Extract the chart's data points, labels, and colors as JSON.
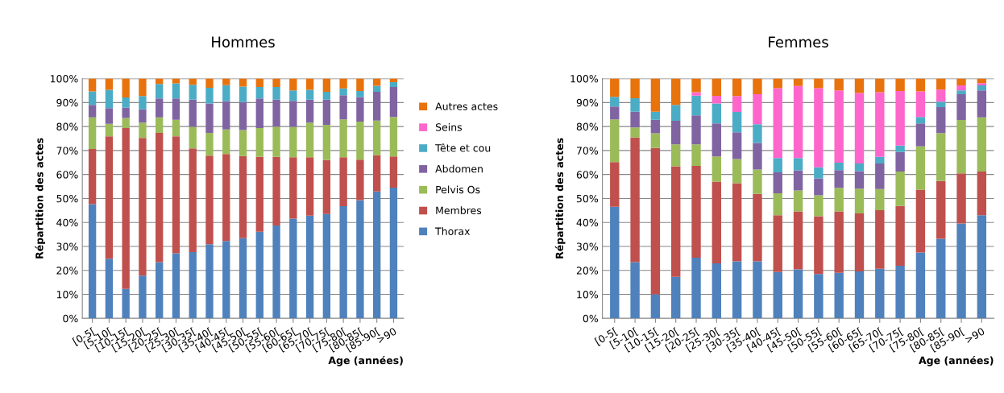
{
  "chart_data": [
    {
      "type": "bar",
      "stacked": true,
      "title": "Hommes",
      "ylabel": "Répartition des actes",
      "xlabel": "Age (années)",
      "legend": "right",
      "grid": "y",
      "categories": [
        "[0-5[",
        "[5-10[",
        "[10-15[",
        "[15-20[",
        "[20-25[",
        "[25-30[",
        "[30-35[",
        "[35-40[",
        "[40-45[",
        "[45-50[",
        "[50-55[",
        "[55-60[",
        "[60-65[",
        "[65-70[",
        "[70-75[",
        "[75-80[",
        "[80-85[",
        "[85-90[",
        ">90"
      ],
      "ylim": [
        0,
        100
      ],
      "yticks": [
        {
          "value": 0,
          "label": "0%"
        },
        {
          "value": 10,
          "label": "10%"
        },
        {
          "value": 20,
          "label": "20%"
        },
        {
          "value": 30,
          "label": "30%"
        },
        {
          "value": 40,
          "label": "40%"
        },
        {
          "value": 50,
          "label": "50%"
        },
        {
          "value": 60,
          "label": "60%"
        },
        {
          "value": 70,
          "label": "70%"
        },
        {
          "value": 80,
          "label": "80%"
        },
        {
          "value": 90,
          "label": "90%"
        },
        {
          "value": 100,
          "label": "100%"
        }
      ],
      "series": [
        {
          "name": "Thorax",
          "color": "#4f81bd",
          "values": [
            47.6,
            24.9,
            12.3,
            17.8,
            23.4,
            27.1,
            27.6,
            30.9,
            32.3,
            33.4,
            36.1,
            38.7,
            41.6,
            42.8,
            43.5,
            46.8,
            49.3,
            52.9,
            54.5
          ]
        },
        {
          "name": "Membres",
          "color": "#c0504d",
          "values": [
            23.0,
            51.0,
            67.1,
            57.5,
            54.0,
            48.8,
            43.3,
            37.0,
            36.2,
            34.3,
            31.3,
            28.7,
            25.6,
            24.4,
            22.5,
            20.4,
            16.9,
            15.1,
            13.0
          ]
        },
        {
          "name": "Pelvis Os",
          "color": "#9bbb59",
          "values": [
            13.2,
            5.2,
            4.2,
            6.3,
            6.4,
            6.9,
            9.0,
            9.5,
            10.3,
            10.8,
            12.0,
            12.6,
            12.7,
            14.4,
            14.7,
            15.8,
            15.9,
            14.5,
            16.5
          ]
        },
        {
          "name": "Abdomen",
          "color": "#8064a2",
          "values": [
            5.2,
            6.6,
            4.3,
            5.6,
            7.9,
            8.9,
            11.3,
            12.2,
            11.8,
            11.7,
            12.3,
            11.2,
            10.8,
            9.6,
            10.5,
            10.1,
            10.2,
            12.0,
            12.5
          ]
        },
        {
          "name": "Tête et cou",
          "color": "#4bacc6",
          "values": [
            5.7,
            7.6,
            4.2,
            5.5,
            6.1,
            6.3,
            6.2,
            6.6,
            6.7,
            6.5,
            4.8,
            5.3,
            4.4,
            4.1,
            3.3,
            2.8,
            2.5,
            2.5,
            2.0
          ]
        },
        {
          "name": "Seins",
          "color": "#ff66cc",
          "values": [
            null,
            null,
            null,
            null,
            null,
            null,
            null,
            null,
            null,
            null,
            null,
            null,
            null,
            null,
            null,
            null,
            null,
            null,
            null
          ]
        },
        {
          "name": "Autres actes",
          "color": "#e8720c",
          "values": [
            5.3,
            4.7,
            7.9,
            7.3,
            2.2,
            2.0,
            2.6,
            3.8,
            2.7,
            3.3,
            3.5,
            3.5,
            4.9,
            4.7,
            5.5,
            4.1,
            5.2,
            3.0,
            1.5
          ]
        }
      ]
    },
    {
      "type": "bar",
      "stacked": true,
      "title": "Femmes",
      "ylabel": "Répartition des actes",
      "xlabel": "Age (années)",
      "grid": "y",
      "categories": [
        "[0-5[",
        "[5-10[",
        "[10-15[",
        "[15-20[",
        "[20-25[",
        "[25-30[",
        "[30-35[",
        "[35-40[",
        "[40-45[",
        "[45-50[",
        "[50-55[",
        "[55-60[",
        "[60-65[",
        "[65-70[",
        "[70-75[",
        "[75-80[",
        "[80-85[",
        "[85-90[",
        ">90"
      ],
      "ylim": [
        0,
        100
      ],
      "yticks": [
        {
          "value": 0,
          "label": "0%"
        },
        {
          "value": 10,
          "label": "10%"
        },
        {
          "value": 20,
          "label": "20%"
        },
        {
          "value": 30,
          "label": "30%"
        },
        {
          "value": 40,
          "label": "40%"
        },
        {
          "value": 50,
          "label": "50%"
        },
        {
          "value": 60,
          "label": "60%"
        },
        {
          "value": 70,
          "label": "70%"
        },
        {
          "value": 80,
          "label": "80%"
        },
        {
          "value": 90,
          "label": "90%"
        },
        {
          "value": 100,
          "label": "100%"
        }
      ],
      "series": [
        {
          "color": "#4f81bd",
          "values": [
            46.5,
            23.4,
            10.0,
            17.3,
            25.3,
            22.9,
            23.8,
            23.8,
            19.3,
            20.4,
            18.5,
            19.0,
            19.6,
            20.7,
            21.9,
            27.5,
            33.2,
            39.6,
            43.0
          ]
        },
        {
          "color": "#c0504d",
          "values": [
            18.7,
            52.0,
            61.1,
            46.1,
            38.3,
            34.1,
            32.6,
            28.1,
            23.7,
            24.2,
            24.1,
            25.6,
            24.2,
            24.4,
            25.0,
            26.2,
            24.1,
            20.9,
            18.2
          ]
        },
        {
          "color": "#9bbb59",
          "values": [
            17.8,
            4.2,
            6.1,
            9.2,
            9.0,
            10.5,
            10.0,
            10.2,
            9.2,
            8.7,
            8.7,
            9.8,
            10.3,
            8.8,
            14.3,
            18.0,
            20.0,
            22.2,
            22.6
          ]
        },
        {
          "color": "#8064a2",
          "values": [
            5.4,
            6.6,
            5.6,
            9.8,
            12.1,
            13.8,
            11.2,
            11.1,
            8.7,
            8.4,
            7.1,
            7.4,
            7.3,
            10.7,
            8.2,
            9.6,
            10.8,
            10.8,
            11.3
          ]
        },
        {
          "color": "#4bacc6",
          "values": [
            4.0,
            5.6,
            3.4,
            6.6,
            8.2,
            8.3,
            8.5,
            7.8,
            6.0,
            5.2,
            4.6,
            3.1,
            3.2,
            2.8,
            2.7,
            2.7,
            2.3,
            1.6,
            2.1
          ]
        },
        {
          "color": "#ff66cc",
          "values": [
            null,
            null,
            null,
            null,
            1.4,
            3.2,
            6.6,
            12.5,
            29.1,
            30.0,
            33.0,
            30.2,
            29.4,
            26.9,
            22.7,
            10.7,
            5.0,
            2.1,
            0.9
          ]
        },
        {
          "color": "#e8720c",
          "values": [
            7.6,
            8.2,
            13.8,
            11.0,
            5.7,
            7.2,
            7.3,
            6.5,
            4.0,
            3.1,
            4.0,
            4.9,
            6.0,
            5.7,
            5.2,
            5.3,
            4.6,
            2.8,
            1.9
          ]
        }
      ]
    }
  ]
}
